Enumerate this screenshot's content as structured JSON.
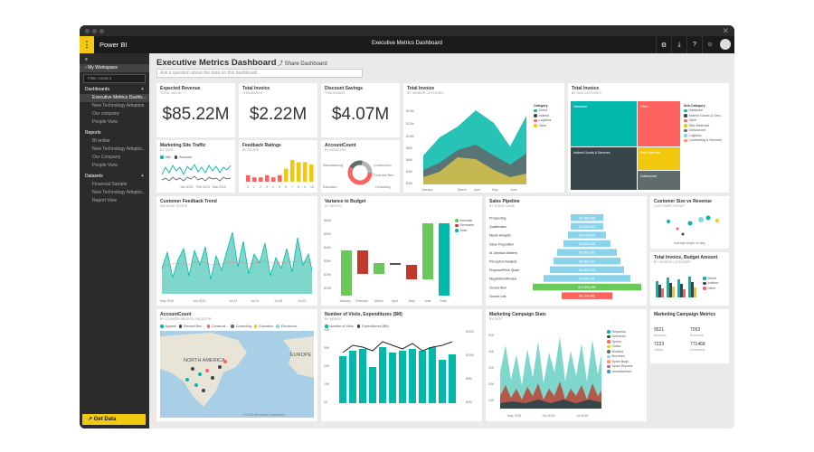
{
  "app": {
    "brand": "Power BI",
    "window_title": "Executive Metrics Dashboard"
  },
  "appbar_icons": [
    "gear-icon",
    "download-icon",
    "help-icon",
    "smiley-icon"
  ],
  "sidebar": {
    "my_workspace": "My Workspace",
    "search_placeholder": "Filter content",
    "dashboards": {
      "label": "Dashboards",
      "items": [
        "Executive Metrics Dashb...",
        "New Technology Adoption",
        "Our company",
        "People View"
      ]
    },
    "reports": {
      "label": "Reports",
      "items": [
        "BI online",
        "New Technology Adoptio...",
        "Our Company",
        "People View"
      ]
    },
    "datasets": {
      "label": "Datasets",
      "items": [
        "Financial Sample",
        "New Technology Adoptio...",
        "Report View"
      ]
    },
    "get_data": "Get Data"
  },
  "dashboard": {
    "title": "Executive Metrics Dashboard",
    "share": "Share Dashboard",
    "qa_placeholder": "Ask a question about the data on this dashboard"
  },
  "tiles": {
    "expected_revenue": {
      "title": "Expected Revenue",
      "subtitle": "Total value",
      "value": "$85.22M"
    },
    "total_invoice_kpi": {
      "title": "Total Invoice",
      "subtitle": "Thousands",
      "value": "$2.22M"
    },
    "discount_savings": {
      "title": "Discount Savings",
      "subtitle": "Thousands",
      "value": "$4.07M"
    },
    "marketing_traffic": {
      "title": "Marketing Site Traffic",
      "subtitle": "By date",
      "legend": [
        "Hits",
        "Bounces"
      ],
      "xlabels": [
        "Jan 2015",
        "Feb 2015",
        "Mar 2015"
      ]
    },
    "feedback_ratings": {
      "title": "Feedback Ratings",
      "subtitle": "By score",
      "xlabels": [
        "0",
        "1",
        "2",
        "3",
        "4",
        "5",
        "6",
        "7",
        "8",
        "9",
        "10"
      ],
      "values": [
        3,
        2,
        2,
        3,
        2,
        3,
        6,
        10,
        9,
        9,
        8
      ]
    },
    "account_count_donut": {
      "title": "AccountCount",
      "subtitle": "By industry",
      "labels": [
        "Manufacturing",
        "Construction",
        "Food and Bev.",
        "Education",
        "Consulting"
      ]
    },
    "total_invoice_area": {
      "title": "Total Invoice",
      "subtitle": "By vendor category",
      "legend_title": "Category",
      "legend": [
        "Direct",
        "Indirect",
        "Logistics",
        "Other"
      ],
      "ylabels": [
        "$0M",
        "$2M",
        "$4M",
        "$6M",
        "$8M",
        "$10M",
        "$12M",
        "$14M"
      ],
      "xlabels": [
        "January",
        "March",
        "April",
        "May",
        "June"
      ]
    },
    "total_invoice_tree": {
      "title": "Total Invoice",
      "subtitle": "By sub category",
      "legend_title": "Sub-Category",
      "legend": [
        "Hardware",
        "Indirect Goods & Serv...",
        "Other",
        "Raw Materials",
        "Outsourced",
        "Logistics",
        "Contracting & Services"
      ],
      "cells": [
        "Hardware",
        "Other",
        "Indirect Goods & Services",
        "Raw Materials",
        "Outsourced"
      ]
    },
    "customer_feedback": {
      "title": "Customer Feedback Trend",
      "subtitle": "Average score",
      "xlabels": [
        "May 2015",
        "Jun 2015",
        "Jul 12",
        "Jul 19",
        "Jul 26",
        "Jul 12"
      ]
    },
    "variance_budget": {
      "title": "Variance to Budget",
      "subtitle": "By month",
      "legend": [
        "Increase",
        "Decrease",
        "Total"
      ],
      "ylabels": [
        "$0K",
        "$10K",
        "$20K",
        "$30K",
        "$40K",
        "$50K",
        "$60K"
      ],
      "xlabels": [
        "January",
        "February",
        "March",
        "April",
        "May",
        "June",
        "Total"
      ]
    },
    "sales_pipeline": {
      "title": "Sales Pipeline",
      "subtitle": "By stage name",
      "stages": [
        "Prospecting",
        "Qualification",
        "Needs Analysis",
        "Value Proposition",
        "Id. Decision Makers",
        "Perception Analysis",
        "Proposal/Price Quote",
        "Negotiation/Review",
        "Closed Won",
        "Closed Lost"
      ],
      "values": [
        "$3,485,568",
        "$3,265,464",
        "$8,542,856",
        "$2,986,548",
        "$8,566,982",
        "$8,968,324",
        "$8,568,325",
        "$3,856,451",
        "$10,855,256",
        "$5,124,985"
      ]
    },
    "customer_size": {
      "title": "Customer Size vs Revenue",
      "subtitle": "Customer group",
      "xlabel": "average length of stay"
    },
    "invoice_budget": {
      "title": "Total Invoice, Budget Amount",
      "subtitle": "By vendor category",
      "legend": [
        "Direct",
        "Indirect",
        "Other"
      ]
    },
    "account_count_map": {
      "title": "AccountCount",
      "subtitle": "By country/region, industry",
      "legend": [
        "Apparel",
        "Brewed Bev...",
        "Construct...",
        "Consulting",
        "Education",
        "Electronics"
      ],
      "map_labels": [
        "NORTH AMERICA",
        "EUROPE"
      ],
      "copyright": "© 2015 Microsoft Corporation"
    },
    "visits": {
      "title": "Number of Visits, Expenditures ($M)",
      "subtitle": "By month",
      "legend": [
        "Number of Visits",
        "Expenditures ($M)"
      ],
      "ylabels_left": [
        "0K",
        "10K",
        "20K",
        "30K",
        "40K"
      ],
      "ylabels_right": [
        "$0M",
        "$5M",
        "$10M",
        "$15M"
      ]
    },
    "campaign_stats": {
      "title": "Marketing Campaign Stats",
      "subtitle": "By date",
      "legend": [
        "Requests",
        "Delivered",
        "Opens",
        "Clicks",
        "Blocked",
        "Bounces",
        "Spam Bugs",
        "Spam Reports",
        "Unsubscribes"
      ],
      "xlabels": [
        "May 2015",
        "Jun 2015",
        "Jul 2015"
      ],
      "ylabels": [
        "0K",
        "10K",
        "20K",
        "30K",
        "40K",
        "50K"
      ]
    },
    "campaign_metrics": {
      "title": "Marketing Campaign Metrics",
      "cells": [
        {
          "value": "9521",
          "label": "Blocked"
        },
        {
          "value": "7053",
          "label": "Bounces"
        },
        {
          "value": "7223",
          "label": "Clicks"
        },
        {
          "value": "771468",
          "label": "Delivered"
        }
      ]
    }
  },
  "colors": {
    "accent": "#f2c811",
    "teal": "#01b8aa",
    "dark": "#374649",
    "red": "#fd625e",
    "yellow": "#f2c80f",
    "gray": "#5f6b6d",
    "blue": "#8ad4eb",
    "green": "#6bc95c"
  }
}
